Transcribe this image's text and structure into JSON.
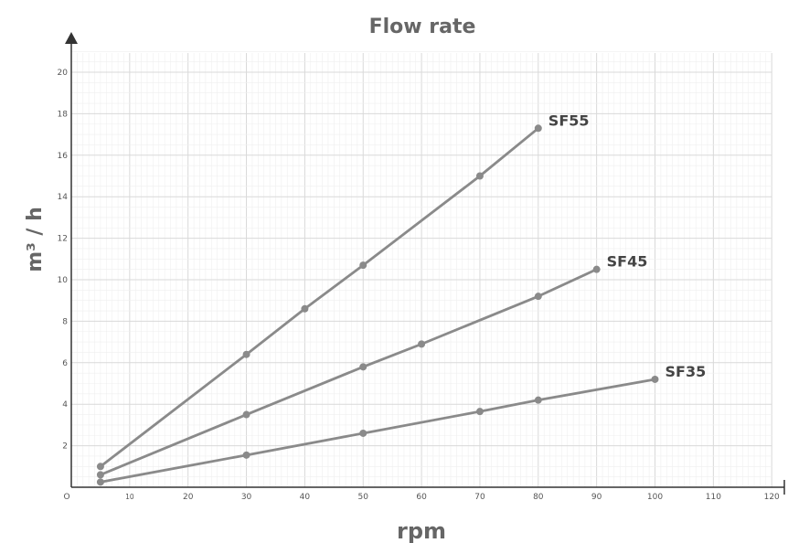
{
  "chart_data": {
    "type": "line",
    "title": "Flow rate",
    "xlabel": "rpm",
    "ylabel": "m³ / h",
    "xlim": [
      0,
      120
    ],
    "ylim": [
      0,
      21
    ],
    "x_ticks": [
      {
        "value": 0,
        "label": "O"
      },
      {
        "value": 10,
        "label": "10"
      },
      {
        "value": 20,
        "label": "20"
      },
      {
        "value": 30,
        "label": "30"
      },
      {
        "value": 40,
        "label": "40"
      },
      {
        "value": 50,
        "label": "50"
      },
      {
        "value": 60,
        "label": "60"
      },
      {
        "value": 70,
        "label": "70"
      },
      {
        "value": 80,
        "label": "80"
      },
      {
        "value": 90,
        "label": "90"
      },
      {
        "value": 100,
        "label": "100"
      },
      {
        "value": 110,
        "label": "110"
      },
      {
        "value": 120,
        "label": "120"
      }
    ],
    "y_ticks": [
      2,
      4,
      6,
      8,
      10,
      12,
      14,
      16,
      18,
      20
    ],
    "grid": true,
    "series": [
      {
        "name": "SF55",
        "points": [
          [
            5,
            1.0
          ],
          [
            30,
            6.4
          ],
          [
            40,
            8.6
          ],
          [
            50,
            10.7
          ],
          [
            70,
            15.0
          ],
          [
            80,
            17.3
          ]
        ]
      },
      {
        "name": "SF45",
        "points": [
          [
            5,
            0.6
          ],
          [
            30,
            3.5
          ],
          [
            50,
            5.8
          ],
          [
            60,
            6.9
          ],
          [
            80,
            9.2
          ],
          [
            90,
            10.5
          ]
        ]
      },
      {
        "name": "SF35",
        "points": [
          [
            5,
            0.25
          ],
          [
            30,
            1.55
          ],
          [
            50,
            2.6
          ],
          [
            70,
            3.65
          ],
          [
            80,
            4.2
          ],
          [
            100,
            5.2
          ]
        ]
      }
    ],
    "colors": {
      "line": "#8a8a8a",
      "axis": "#333333",
      "grid_major": "#d9d9d9",
      "grid_minor": "#efefef"
    }
  }
}
